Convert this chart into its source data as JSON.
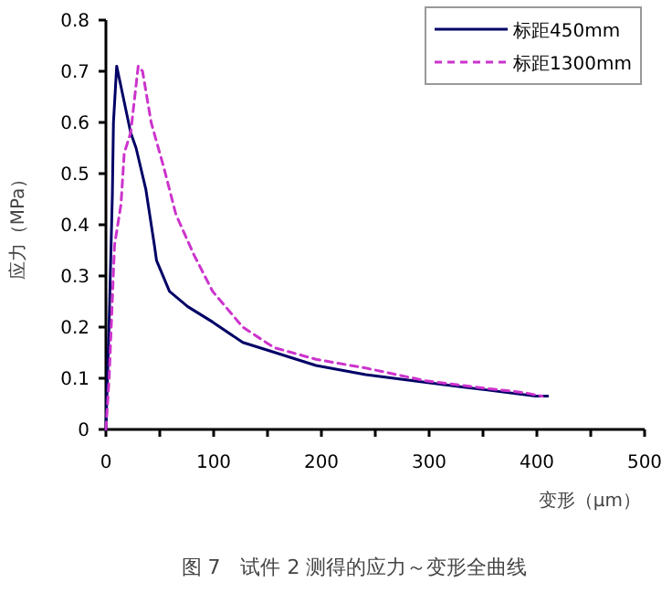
{
  "chart_data": {
    "type": "line",
    "title": "图 7　试件 2 测得的应力～变形全曲线",
    "xlabel": "变形（μm）",
    "ylabel": "应力（MPa）",
    "xlim": [
      0,
      500
    ],
    "ylim": [
      0,
      0.8
    ],
    "xticks": [
      0,
      {
        "value": 50,
        "label": null
      },
      100,
      {
        "value": 150,
        "label": null
      },
      200,
      {
        "value": 250,
        "label": null
      },
      300,
      {
        "value": 350,
        "label": null
      },
      400,
      {
        "value": 450,
        "label": null
      },
      500
    ],
    "yticks": [
      0,
      0.1,
      0.2,
      0.3,
      0.4,
      0.5,
      0.6,
      0.7,
      0.8
    ],
    "grid": false,
    "legend": "top right",
    "marker": "none",
    "series": [
      {
        "name": "标距450mm",
        "color": "#000066",
        "line_style": "solid",
        "x": [
          0,
          3,
          6,
          7,
          10,
          14,
          23,
          28,
          37,
          45,
          47,
          59,
          76,
          99,
          127,
          150,
          195,
          241,
          297,
          354,
          399,
          410
        ],
        "values": [
          0,
          0.21,
          0.46,
          0.6,
          0.71,
          0.67,
          0.58,
          0.55,
          0.47,
          0.36,
          0.33,
          0.27,
          0.24,
          0.21,
          0.17,
          0.155,
          0.125,
          0.107,
          0.092,
          0.077,
          0.065,
          0.065
        ]
      },
      {
        "name": "标距1300mm",
        "color": "#cc33cc",
        "line_style": "dashed",
        "x": [
          0,
          3,
          8,
          14,
          17,
          23,
          30,
          34,
          42,
          54,
          65,
          82,
          99,
          127,
          156,
          195,
          241,
          297,
          354,
          388,
          405
        ],
        "values": [
          0,
          0.1,
          0.36,
          0.44,
          0.54,
          0.58,
          0.71,
          0.7,
          0.6,
          0.51,
          0.42,
          0.34,
          0.27,
          0.2,
          0.16,
          0.137,
          0.12,
          0.095,
          0.08,
          0.072,
          0.065
        ]
      }
    ]
  }
}
